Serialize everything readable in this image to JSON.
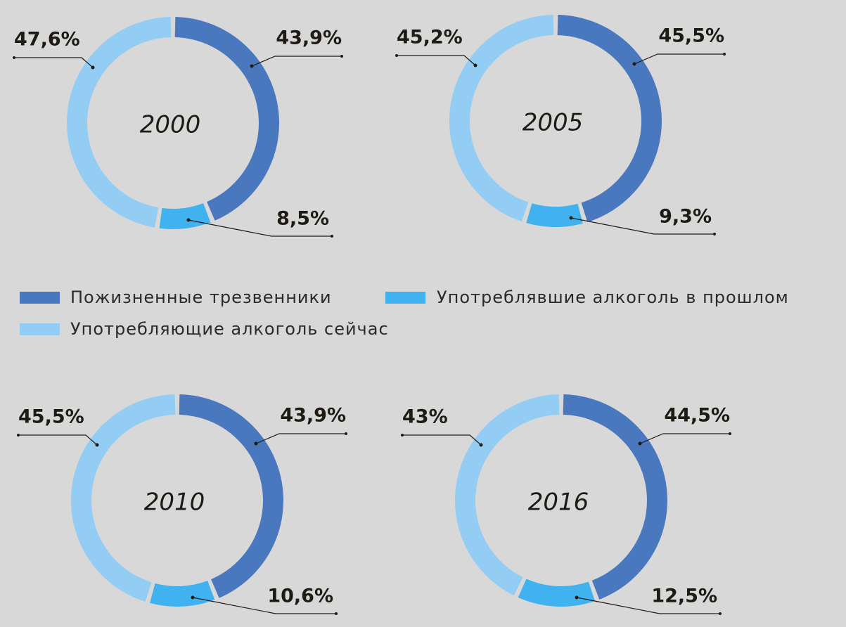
{
  "legend": {
    "items": [
      {
        "name": "Пожизненные трезвенники",
        "color": "#4a78bf"
      },
      {
        "name": "Употреблявшие алкоголь в прошлом",
        "color": "#3fb2ef"
      },
      {
        "name": "Употребляющие алкоголь сейчас",
        "color": "#93cdf4"
      }
    ]
  },
  "chart_data": [
    {
      "type": "pie",
      "title": "2000",
      "values": [
        43.9,
        8.5,
        47.6
      ],
      "value_labels": [
        "43,9%",
        "8,5%",
        "47,6%"
      ]
    },
    {
      "type": "pie",
      "title": "2005",
      "values": [
        45.5,
        9.3,
        45.2
      ],
      "value_labels": [
        "45,5%",
        "9,3%",
        "45,2%"
      ]
    },
    {
      "type": "pie",
      "title": "2010",
      "values": [
        43.9,
        10.6,
        45.5
      ],
      "value_labels": [
        "43,9%",
        "10,6%",
        "45,5%"
      ]
    },
    {
      "type": "pie",
      "title": "2016",
      "values": [
        44.5,
        12.5,
        43
      ],
      "value_labels": [
        "44,5%",
        "12,5%",
        "43%"
      ]
    }
  ]
}
